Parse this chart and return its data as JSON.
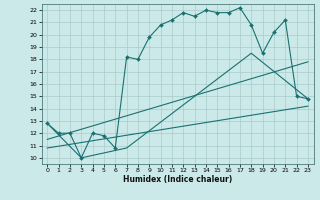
{
  "title": "",
  "xlabel": "Humidex (Indice chaleur)",
  "bg_color": "#cce9e9",
  "line_color": "#1a7070",
  "xlim": [
    -0.5,
    23.5
  ],
  "ylim": [
    9.5,
    22.5
  ],
  "xticks": [
    0,
    1,
    2,
    3,
    4,
    5,
    6,
    7,
    8,
    9,
    10,
    11,
    12,
    13,
    14,
    15,
    16,
    17,
    18,
    19,
    20,
    21,
    22,
    23
  ],
  "yticks": [
    10,
    11,
    12,
    13,
    14,
    15,
    16,
    17,
    18,
    19,
    20,
    21,
    22
  ],
  "line1_x": [
    0,
    1,
    2,
    3,
    4,
    5,
    6,
    7,
    8,
    9,
    10,
    11,
    12,
    13,
    14,
    15,
    16,
    17,
    18,
    19,
    20,
    21,
    22,
    23
  ],
  "line1_y": [
    12.8,
    12.0,
    12.0,
    10.0,
    12.0,
    11.8,
    10.8,
    18.2,
    18.0,
    19.8,
    20.8,
    21.2,
    21.8,
    21.5,
    22.0,
    21.8,
    21.8,
    22.2,
    20.8,
    18.5,
    20.2,
    21.2,
    15.0,
    14.8
  ],
  "line2_x": [
    0,
    3,
    7,
    18,
    23
  ],
  "line2_y": [
    12.8,
    10.0,
    10.8,
    18.5,
    14.8
  ],
  "line3_x": [
    0,
    23
  ],
  "line3_y": [
    11.5,
    17.8
  ],
  "line4_x": [
    0,
    23
  ],
  "line4_y": [
    10.8,
    14.2
  ]
}
